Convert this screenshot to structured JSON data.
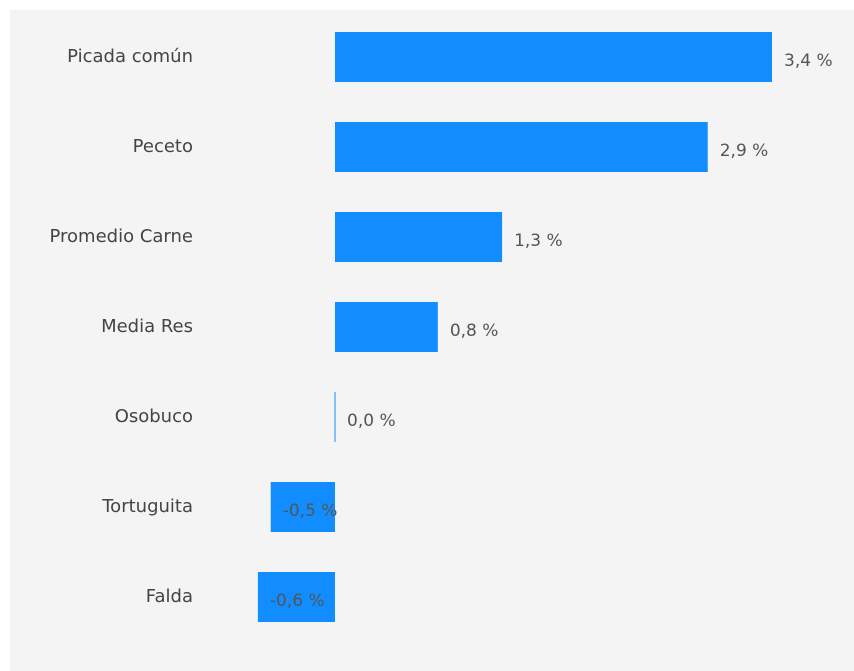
{
  "chart_data": {
    "type": "bar",
    "orientation": "horizontal",
    "categories": [
      "Picada común",
      "Peceto",
      "Promedio Carne",
      "Media Res",
      "Osobuco",
      "Tortuguita",
      "Falda"
    ],
    "values": [
      3.4,
      2.9,
      1.3,
      0.8,
      0.0,
      -0.5,
      -0.6
    ],
    "value_labels": [
      "3,4 %",
      "2,9 %",
      "1,3 %",
      "0,8 %",
      "0,0 %",
      "-0,5 %",
      "-0,6 %"
    ],
    "color": "#118dff"
  }
}
